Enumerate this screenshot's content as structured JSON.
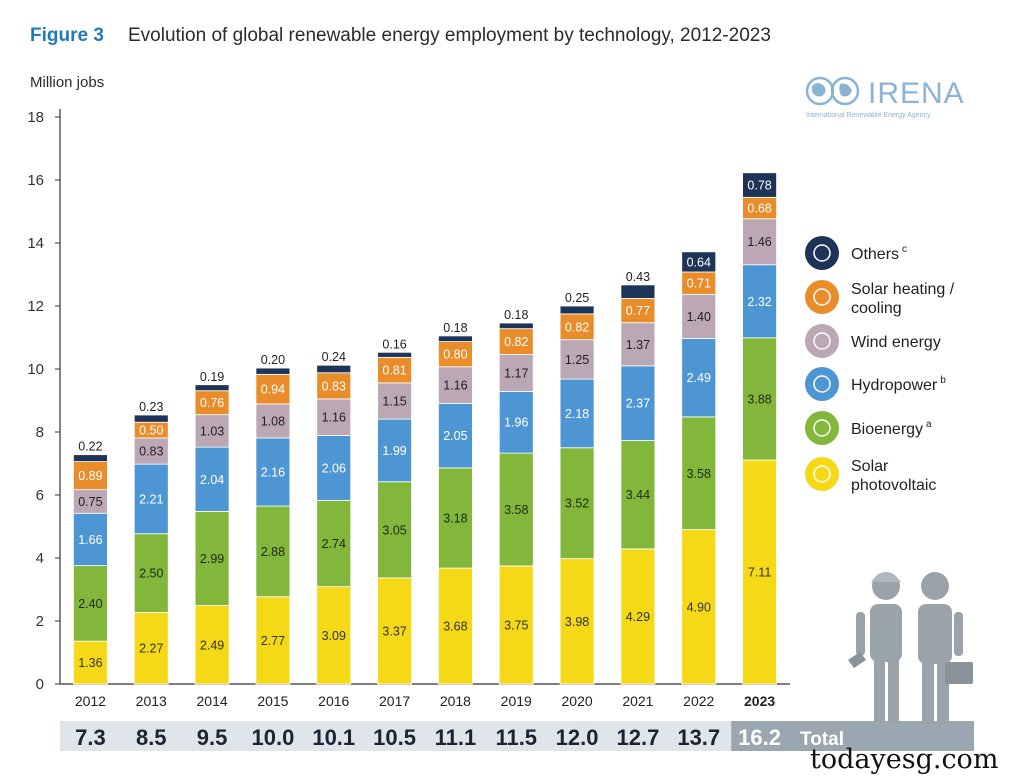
{
  "figure_label": "Figure 3",
  "title": "Evolution of global renewable energy employment by technology, 2012-2023",
  "logo": {
    "text": "IRENA",
    "subtext": "International Renewable Energy Agency"
  },
  "watermark": "todayesg.com",
  "total_label": "Total",
  "chart_data": {
    "type": "bar",
    "stacked": true,
    "ylabel": "Million jobs",
    "ylim": [
      0,
      18
    ],
    "yticks": [
      0,
      2,
      4,
      6,
      8,
      10,
      12,
      14,
      16,
      18
    ],
    "categories": [
      "2012",
      "2013",
      "2014",
      "2015",
      "2016",
      "2017",
      "2018",
      "2019",
      "2020",
      "2021",
      "2022",
      "2023"
    ],
    "highlight_category": "2023",
    "series": [
      {
        "name": "Solar photovoltaic",
        "color": "#f5d917",
        "label_color": "#333333",
        "values": [
          1.36,
          2.27,
          2.49,
          2.77,
          3.09,
          3.37,
          3.68,
          3.75,
          3.98,
          4.29,
          4.9,
          7.11
        ],
        "labels": [
          "1.36",
          "2.27",
          "2.49",
          "2.77",
          "3.09",
          "3.37",
          "3.68",
          "3.75",
          "3.98",
          "4.29",
          "4.90",
          "7.11"
        ]
      },
      {
        "name": "Bioenergy",
        "sup": "a",
        "color": "#82b73c",
        "label_color": "#1f2a10",
        "values": [
          2.4,
          2.5,
          2.99,
          2.88,
          2.74,
          3.05,
          3.18,
          3.58,
          3.52,
          3.44,
          3.58,
          3.88
        ],
        "labels": [
          "2.40",
          "2.50",
          "2.99",
          "2.88",
          "2.74",
          "3.05",
          "3.18",
          "3.58",
          "3.52",
          "3.44",
          "3.58",
          "3.88"
        ]
      },
      {
        "name": "Hydropower",
        "sup": "b",
        "color": "#4e95d4",
        "label_color": "#ffffff",
        "values": [
          1.66,
          2.21,
          2.04,
          2.16,
          2.06,
          1.99,
          2.05,
          1.96,
          2.18,
          2.37,
          2.49,
          2.32
        ],
        "labels": [
          "1.66",
          "2.21",
          "2.04",
          "2.16",
          "2.06",
          "1.99",
          "2.05",
          "1.96",
          "2.18",
          "2.37",
          "2.49",
          "2.32"
        ]
      },
      {
        "name": "Wind energy",
        "color": "#bba8b4",
        "label_color": "#222222",
        "values": [
          0.75,
          0.83,
          1.03,
          1.08,
          1.16,
          1.15,
          1.16,
          1.17,
          1.25,
          1.37,
          1.4,
          1.46
        ],
        "labels": [
          "0.75",
          "0.83",
          "1.03",
          "1.08",
          "1.16",
          "1.15",
          "1.16",
          "1.17",
          "1.25",
          "1.37",
          "1.40",
          "1.46"
        ]
      },
      {
        "name": "Solar heating / cooling",
        "color": "#e98d2a",
        "label_color": "#ffffff",
        "values": [
          0.89,
          0.5,
          0.76,
          0.94,
          0.83,
          0.81,
          0.8,
          0.82,
          0.82,
          0.77,
          0.71,
          0.68
        ],
        "labels": [
          "0.89",
          "0.50",
          "0.76",
          "0.94",
          "0.83",
          "0.81",
          "0.80",
          "0.82",
          "0.82",
          "0.77",
          "0.71",
          "0.68"
        ]
      },
      {
        "name": "Others",
        "sup": "c",
        "color": "#1e3358",
        "label_color": "#ffffff",
        "values": [
          0.22,
          0.23,
          0.19,
          0.2,
          0.24,
          0.16,
          0.18,
          0.18,
          0.25,
          0.43,
          0.64,
          0.78
        ],
        "labels": [
          "0.22",
          "0.23",
          "0.19",
          "0.20",
          "0.24",
          "0.16",
          "0.18",
          "0.18",
          "0.25",
          "0.43",
          "0.64",
          "0.78"
        ]
      }
    ],
    "totals": [
      "7.3",
      "8.5",
      "9.5",
      "10.0",
      "10.1",
      "10.5",
      "11.1",
      "11.5",
      "12.0",
      "12.7",
      "13.7",
      "16.2"
    ],
    "legend_order": [
      5,
      4,
      3,
      2,
      1,
      0
    ],
    "legend_labels": [
      [
        "Solar",
        "photovoltaic"
      ],
      [
        "Bioenergy"
      ],
      [
        "Hydropower"
      ],
      [
        "Wind energy"
      ],
      [
        "Solar heating /",
        "cooling"
      ],
      [
        "Others"
      ]
    ],
    "legend_placement": "right",
    "grid": false
  }
}
